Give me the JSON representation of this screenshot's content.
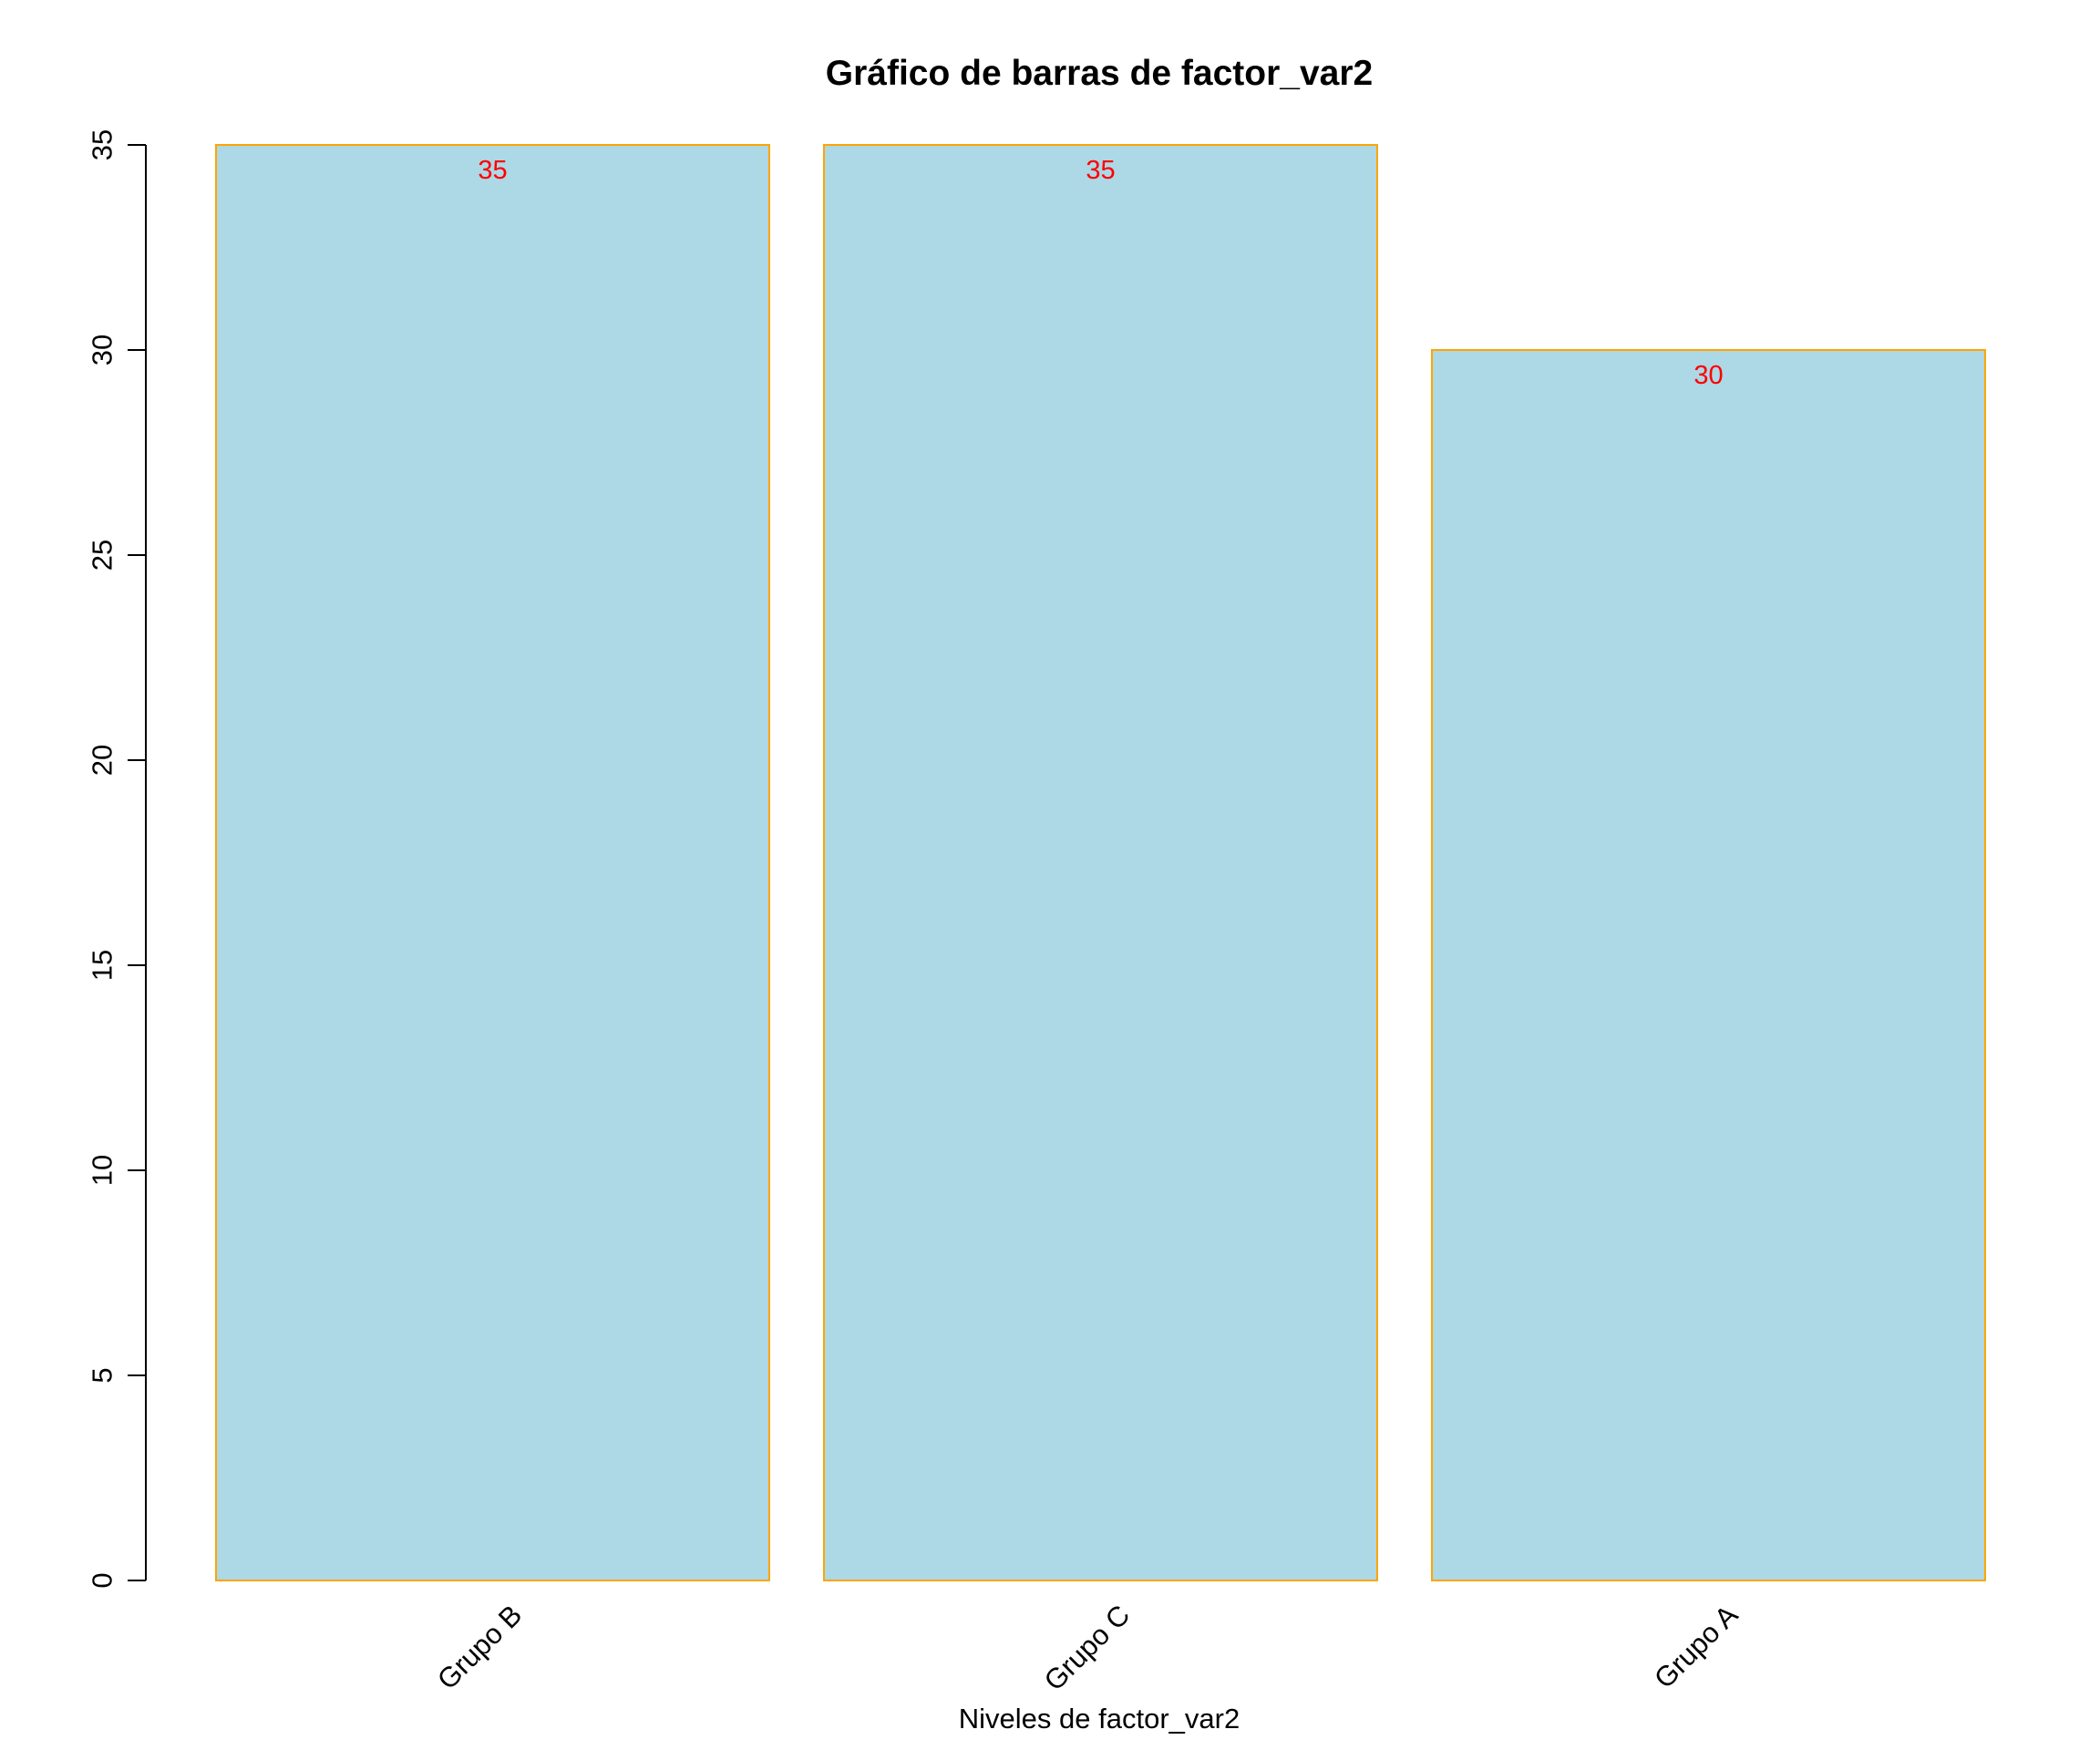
{
  "chart_data": {
    "type": "bar",
    "title": "Gráfico de barras de factor_var2",
    "xlabel": "Niveles de factor_var2",
    "ylabel": "",
    "categories": [
      "Grupo B",
      "Grupo C",
      "Grupo A"
    ],
    "values": [
      35,
      35,
      30
    ],
    "data_labels": [
      "35",
      "35",
      "30"
    ],
    "ylim": [
      0,
      35
    ],
    "yticks": [
      0,
      5,
      10,
      15,
      20,
      25,
      30,
      35
    ],
    "ytick_labels": [
      "0",
      "5",
      "10",
      "15",
      "20",
      "25",
      "30",
      "35"
    ],
    "grid": false,
    "legend": "none",
    "colors": {
      "bar_fill": "#ADD8E6",
      "bar_border": "#FFA500",
      "data_label": "#FF0000",
      "axis": "#000000"
    }
  }
}
